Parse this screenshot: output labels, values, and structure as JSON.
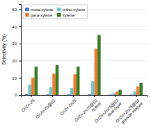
{
  "chart_data": {
    "type": "bar",
    "ylabel": "Selectivity (%)",
    "categories": [
      "Cr/Zn-Z5",
      "Cr/Zn-Z5@S1",
      "Cr/Zn-ZnZ5",
      "Cr/Zn-ZnZ5@S1\nhybrid",
      "Cr/Zn+ZnZ5@S1\ndual-layer",
      "Cr/Zn+ZnZ5@S1\ngranule mixture"
    ],
    "series": [
      {
        "name": "meta-xylene",
        "color": "#4472c4",
        "values": [
          0.4,
          0.3,
          0.3,
          0.4,
          0.2,
          0.2
        ]
      },
      {
        "name": "ortho-xylene",
        "color": "#70c4c8",
        "values": [
          6,
          4.5,
          4,
          8,
          1,
          2
        ]
      },
      {
        "name": "para-xylene",
        "color": "#ed7d31",
        "values": [
          10,
          12.5,
          12,
          27,
          2,
          5
        ]
      },
      {
        "name": "xylene",
        "color": "#3a7a28",
        "values": [
          16.5,
          17.5,
          16.5,
          35,
          3,
          7
        ]
      }
    ],
    "ylim": [
      0,
      53
    ],
    "yticks": [
      0,
      10,
      20,
      30,
      40,
      50
    ],
    "grid": true,
    "legend": "upper-left"
  }
}
